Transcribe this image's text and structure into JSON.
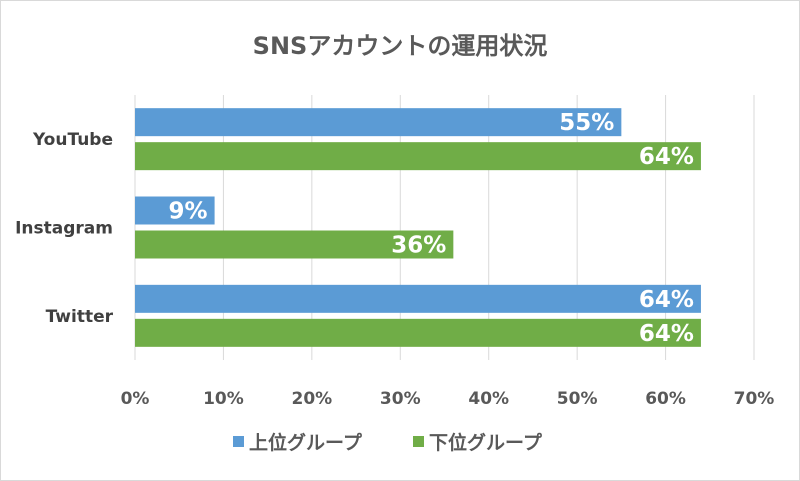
{
  "chart_data": {
    "type": "bar",
    "orientation": "horizontal",
    "title": "SNSアカウントの運用状況",
    "categories": [
      "YouTube",
      "Instagram",
      "Twitter"
    ],
    "series": [
      {
        "name": "上位グループ",
        "color": "#5b9bd5",
        "values": [
          55,
          9,
          64
        ],
        "labels": [
          "55%",
          "9%",
          "64%"
        ]
      },
      {
        "name": "下位グループ",
        "color": "#70ad47",
        "values": [
          64,
          36,
          64
        ],
        "labels": [
          "64%",
          "36%",
          "64%"
        ]
      }
    ],
    "xlim": [
      0,
      70
    ],
    "xticks": [
      0,
      10,
      20,
      30,
      40,
      50,
      60,
      70
    ],
    "xtick_labels": [
      "0%",
      "10%",
      "20%",
      "30%",
      "40%",
      "50%",
      "60%",
      "70%"
    ],
    "grid": "vertical",
    "legend": "bottom",
    "gridline_color": "#d9d9d9"
  }
}
